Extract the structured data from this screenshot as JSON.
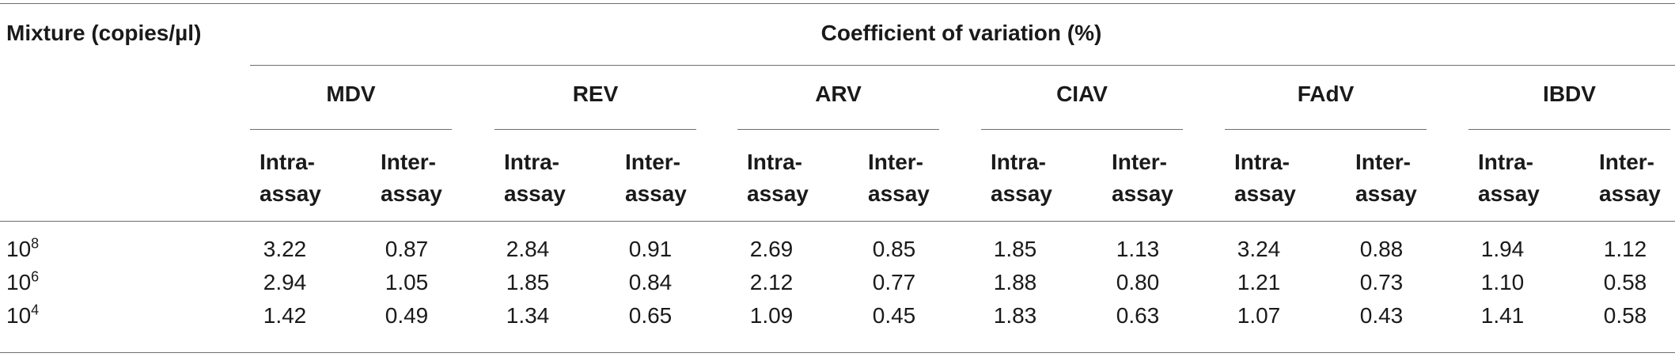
{
  "table": {
    "row_header": "Mixture (copies/µl)",
    "group_header": "Coefficient of variation (%)",
    "viruses": [
      "MDV",
      "REV",
      "ARV",
      "CIAV",
      "FAdV",
      "IBDV"
    ],
    "sub_headers": {
      "intra_line1": "Intra-",
      "intra_line2": "assay",
      "inter_line1": "Inter-",
      "inter_line2": "assay"
    },
    "rows": [
      {
        "base": "10",
        "exp": "8",
        "values": [
          "3.22",
          "0.87",
          "2.84",
          "0.91",
          "2.69",
          "0.85",
          "1.85",
          "1.13",
          "3.24",
          "0.88",
          "1.94",
          "1.12"
        ]
      },
      {
        "base": "10",
        "exp": "6",
        "values": [
          "2.94",
          "1.05",
          "1.85",
          "0.84",
          "2.12",
          "0.77",
          "1.88",
          "0.80",
          "1.21",
          "0.73",
          "1.10",
          "0.58"
        ]
      },
      {
        "base": "10",
        "exp": "4",
        "values": [
          "1.42",
          "0.49",
          "1.34",
          "0.65",
          "1.09",
          "0.45",
          "1.83",
          "0.63",
          "1.07",
          "0.43",
          "1.41",
          "0.58"
        ]
      }
    ]
  }
}
